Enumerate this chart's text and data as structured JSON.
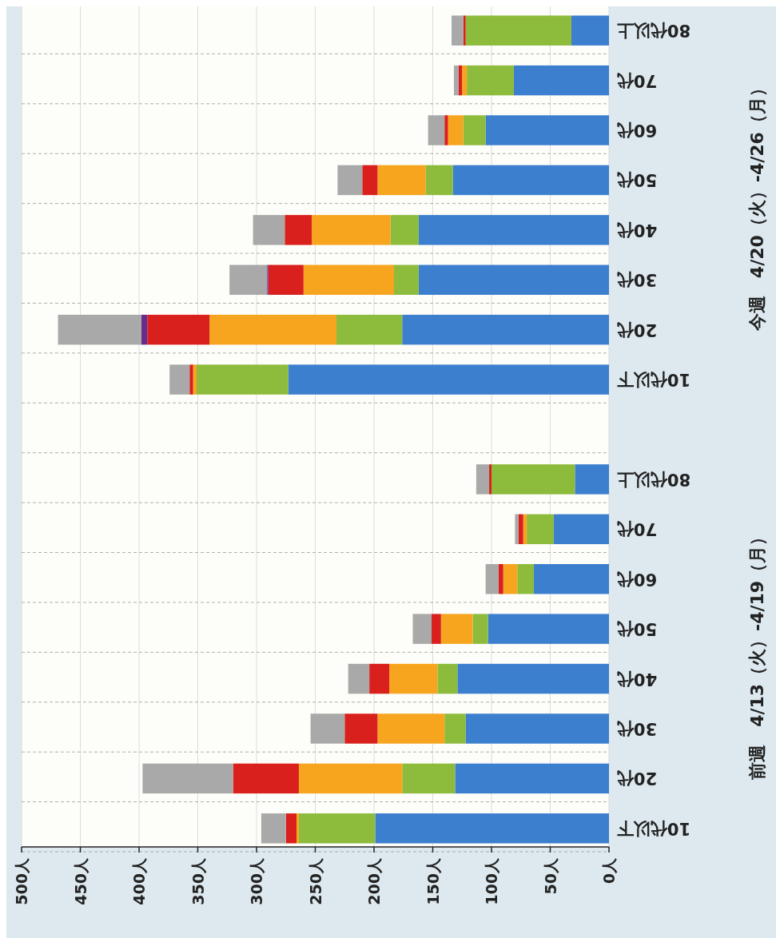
{
  "chart_data": {
    "type": "bar",
    "orientation": "horizontal",
    "stacked": true,
    "categories": [
      "80代以上",
      "70代",
      "60代",
      "50代",
      "40代",
      "30代",
      "20代",
      "10代以下",
      null,
      "80代以上",
      "70代",
      "60代",
      "50代",
      "40代",
      "30代",
      "20代",
      "10代以下"
    ],
    "series": [
      {
        "color": "#3c7fcf",
        "values": [
          32,
          81,
          105,
          133,
          162,
          162,
          176,
          273,
          null,
          29,
          47,
          64,
          103,
          129,
          122,
          131,
          199
        ]
      },
      {
        "color": "#8dbb3c",
        "values": [
          90,
          40,
          19,
          23,
          24,
          21,
          56,
          78,
          null,
          71,
          23,
          14,
          13,
          17,
          18,
          45,
          65
        ]
      },
      {
        "color": "#f7a51e",
        "values": [
          0,
          4,
          13,
          41,
          67,
          77,
          108,
          3,
          null,
          0,
          3,
          12,
          27,
          41,
          57,
          88,
          2
        ]
      },
      {
        "color": "#d9201c",
        "values": [
          2,
          3,
          3,
          13,
          23,
          30,
          53,
          3,
          null,
          2,
          4,
          4,
          8,
          17,
          28,
          56,
          9
        ]
      },
      {
        "color": "#6a2a8a",
        "values": [
          0,
          0,
          0,
          0,
          0,
          1,
          5,
          0,
          null,
          0,
          0,
          0,
          0,
          0,
          0,
          0,
          0
        ]
      },
      {
        "color": "#a9a9a9",
        "values": [
          10,
          4,
          14,
          21,
          27,
          32,
          71,
          17,
          null,
          11,
          3,
          11,
          16,
          18,
          29,
          77,
          21
        ]
      }
    ],
    "xlim": [
      500,
      0
    ],
    "xticks": [
      {
        "value": 500,
        "label": "500人"
      },
      {
        "value": 450,
        "label": "450人"
      },
      {
        "value": 400,
        "label": "400人"
      },
      {
        "value": 350,
        "label": "350人"
      },
      {
        "value": 300,
        "label": "300人"
      },
      {
        "value": 250,
        "label": "250人"
      },
      {
        "value": 200,
        "label": "200人"
      },
      {
        "value": 150,
        "label": "150人"
      },
      {
        "value": 100,
        "label": "100人"
      },
      {
        "value": 50,
        "label": "50人"
      },
      {
        "value": 0,
        "label": "0人"
      }
    ],
    "grid": true,
    "annotations": [
      "今週　4/20（火）-4/26（月）",
      "前週　4/13（火）-4/19（月）"
    ]
  }
}
